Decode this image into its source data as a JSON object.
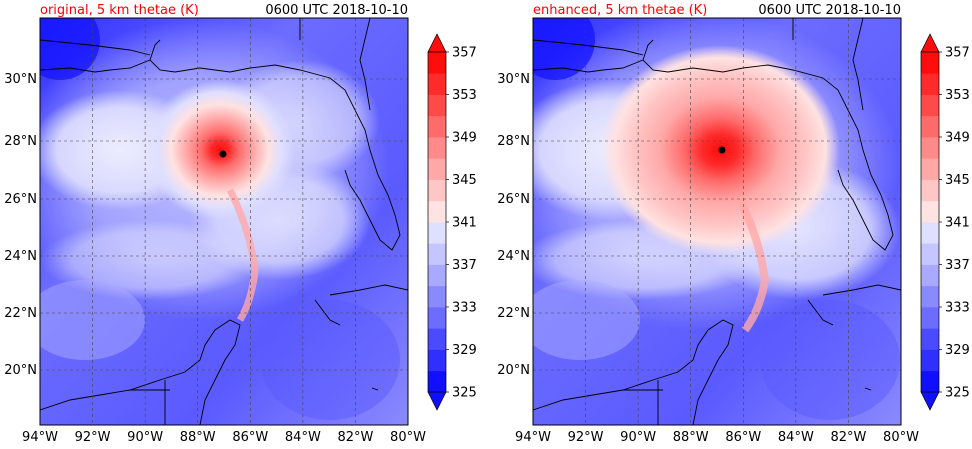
{
  "figure": {
    "panels": [
      {
        "left_title": "original, 5 km thetae (K)",
        "right_title": "0600 UTC 2018-10-10"
      },
      {
        "left_title": "enhanced, 5 km thetae (K)",
        "right_title": "0600 UTC 2018-10-10"
      }
    ],
    "colors": {
      "title_red": "#ff0000",
      "colorbar": [
        "#1010ff",
        "#2f2fff",
        "#4a4aff",
        "#6c6cff",
        "#8a8aff",
        "#a9a9ff",
        "#c5c5ff",
        "#dfdfff",
        "#ffe2e2",
        "#ffc6c6",
        "#ffa8a8",
        "#ff8a8a",
        "#ff6b6b",
        "#ff4a4a",
        "#ff2a2a",
        "#ff0c0c"
      ],
      "coast": "#000000",
      "storm_center": "#000000"
    }
  },
  "chart_data": [
    {
      "type": "contourf-map",
      "title": "original, 5 km thetae (K)",
      "time": "0600 UTC 2018-10-10",
      "xlim": [
        -94,
        -80
      ],
      "ylim": [
        18.2,
        32.0
      ],
      "x_ticks": [
        -94,
        -92,
        -90,
        -88,
        -86,
        -84,
        -82,
        -80
      ],
      "x_tick_labels": [
        "94°W",
        "92°W",
        "90°W",
        "88°W",
        "86°W",
        "84°W",
        "82°W",
        "80°W"
      ],
      "y_ticks": [
        20,
        22,
        24,
        26,
        28,
        30
      ],
      "y_tick_labels": [
        "20°N",
        "22°N",
        "24°N",
        "26°N",
        "28°N",
        "30°N"
      ],
      "grid": true,
      "storm_center": {
        "lon": -87.1,
        "lat": 27.5
      },
      "colorbar": {
        "vmin": 325,
        "vmax": 357,
        "step": 2,
        "tick_labels": [
          "325",
          "329",
          "333",
          "337",
          "341",
          "345",
          "349",
          "353",
          "357"
        ],
        "extend": "both"
      }
    },
    {
      "type": "contourf-map",
      "title": "enhanced, 5 km thetae (K)",
      "time": "0600 UTC 2018-10-10",
      "xlim": [
        -94,
        -80
      ],
      "ylim": [
        18.2,
        32.0
      ],
      "x_ticks": [
        -94,
        -92,
        -90,
        -88,
        -86,
        -84,
        -82,
        -80
      ],
      "x_tick_labels": [
        "94°W",
        "92°W",
        "90°W",
        "88°W",
        "86°W",
        "84°W",
        "82°W",
        "80°W"
      ],
      "y_ticks": [
        20,
        22,
        24,
        26,
        28,
        30
      ],
      "y_tick_labels": [
        "20°N",
        "22°N",
        "24°N",
        "26°N",
        "28°N",
        "30°N"
      ],
      "grid": true,
      "storm_center": {
        "lon": -86.9,
        "lat": 27.6
      },
      "colorbar": {
        "vmin": 325,
        "vmax": 357,
        "step": 2,
        "tick_labels": [
          "325",
          "329",
          "333",
          "337",
          "341",
          "345",
          "349",
          "353",
          "357"
        ],
        "extend": "both"
      }
    }
  ]
}
